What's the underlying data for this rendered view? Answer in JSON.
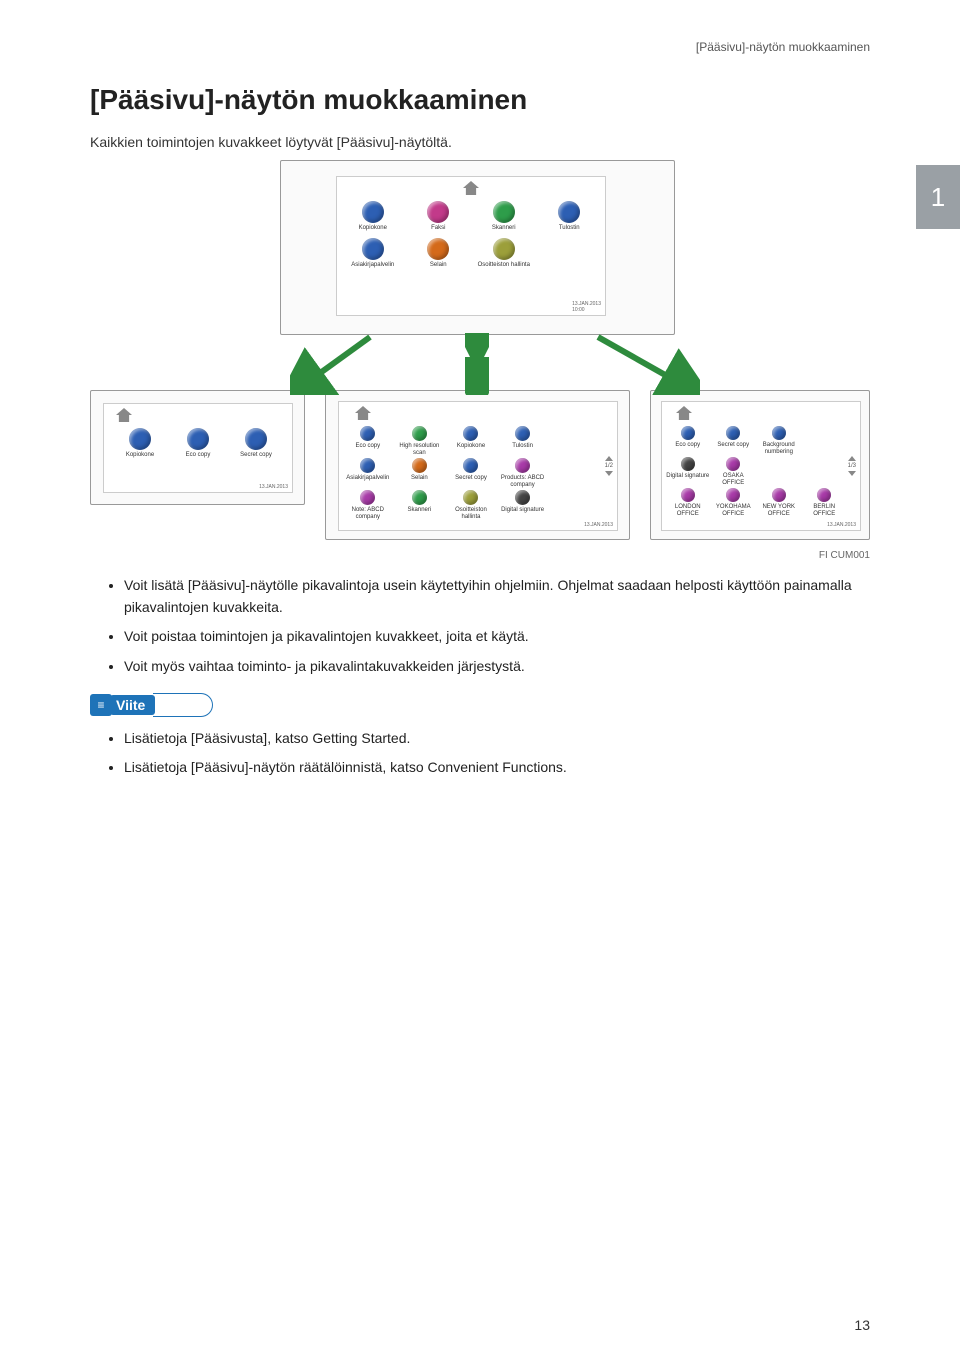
{
  "header": {
    "running_title": "[Pääsivu]-näytön muokkaaminen"
  },
  "title": "[Pääsivu]-näytön muokkaaminen",
  "intro": "Kaikkien toimintojen kuvakkeet löytyvät [Pääsivu]-näytöltä.",
  "chapter_number": "1",
  "figure": {
    "caption": "FI CUM001",
    "arrow_color": "#2e8b3d",
    "panels": {
      "top": {
        "icons_row1": [
          {
            "label": "Kopiokone",
            "color": "#2d5fb3"
          },
          {
            "label": "Faksi",
            "color": "#c23a8a"
          },
          {
            "label": "Skanneri",
            "color": "#2e9d4a"
          },
          {
            "label": "Tulostin",
            "color": "#2d5fb3"
          }
        ],
        "icons_row2": [
          {
            "label": "Asiakirjapalvelin",
            "color": "#2d5fb3"
          },
          {
            "label": "Selain",
            "color": "#d46a1a"
          },
          {
            "label": "Osoitteiston hallinta",
            "color": "#9c9f3a"
          }
        ],
        "date": "13.JAN.2013",
        "time": "10:00"
      },
      "bottom_left": {
        "icons": [
          {
            "label": "Kopiokone",
            "color": "#2d5fb3"
          },
          {
            "label": "Eco copy",
            "color": "#2d5fb3"
          },
          {
            "label": "Secret copy",
            "color": "#2d5fb3"
          }
        ],
        "date": "13.JAN.2013"
      },
      "bottom_center": {
        "icons_row1": [
          {
            "label": "Eco copy",
            "color": "#2d5fb3"
          },
          {
            "label": "High resolution scan",
            "color": "#2e9d4a"
          },
          {
            "label": "Kopiokone",
            "color": "#2d5fb3"
          },
          {
            "label": "Tulostin",
            "color": "#2d5fb3"
          },
          {
            "label": "",
            "color": ""
          }
        ],
        "icons_row2": [
          {
            "label": "Asiakirjapalvelin",
            "color": "#2d5fb3"
          },
          {
            "label": "Selain",
            "color": "#d46a1a"
          },
          {
            "label": "Secret copy",
            "color": "#2d5fb3"
          },
          {
            "label": "Products: ABCD company",
            "color": "#a83aa8"
          },
          {
            "label": "",
            "color": ""
          }
        ],
        "icons_row3": [
          {
            "label": "Note: ABCD company",
            "color": "#a83aa8"
          },
          {
            "label": "Skanneri",
            "color": "#2e9d4a"
          },
          {
            "label": "Osoitteiston hallinta",
            "color": "#9c9f3a"
          },
          {
            "label": "Digital signature",
            "color": "#444"
          },
          {
            "label": "",
            "color": ""
          }
        ],
        "pager": "1/2",
        "date": "13.JAN.2013"
      },
      "bottom_right": {
        "icons_row1": [
          {
            "label": "Eco copy",
            "color": "#2d5fb3"
          },
          {
            "label": "Secret copy",
            "color": "#2d5fb3"
          },
          {
            "label": "Background numbering",
            "color": "#2d5fb3"
          },
          {
            "label": "",
            "color": ""
          }
        ],
        "icons_row2": [
          {
            "label": "Digital signature",
            "color": "#444"
          },
          {
            "label": "OSAKA OFFICE",
            "color": "#a83aa8"
          },
          {
            "label": "",
            "color": ""
          },
          {
            "label": "",
            "color": ""
          }
        ],
        "icons_row3": [
          {
            "label": "LONDON OFFICE",
            "color": "#a83aa8"
          },
          {
            "label": "YOKOHAMA OFFICE",
            "color": "#a83aa8"
          },
          {
            "label": "NEW YORK OFFICE",
            "color": "#a83aa8"
          },
          {
            "label": "BERLIN OFFICE",
            "color": "#a83aa8"
          }
        ],
        "pager": "1/3",
        "date": "13.JAN.2013"
      }
    }
  },
  "bullets_main": [
    "Voit lisätä [Pääsivu]-näytölle pikavalintoja usein käytettyihin ohjelmiin. Ohjelmat saadaan helposti käyttöön painamalla pikavalintojen kuvakkeita.",
    "Voit poistaa toimintojen ja pikavalintojen kuvakkeet, joita et käytä.",
    "Voit myös vaihtaa toiminto- ja pikavalintakuvakkeiden järjestystä."
  ],
  "note_label": "Viite",
  "bullets_note": [
    "Lisätietoja [Pääsivusta], katso Getting Started.",
    "Lisätietoja [Pääsivu]-näytön räätälöinnistä, katso Convenient Functions."
  ],
  "page_number": "13"
}
